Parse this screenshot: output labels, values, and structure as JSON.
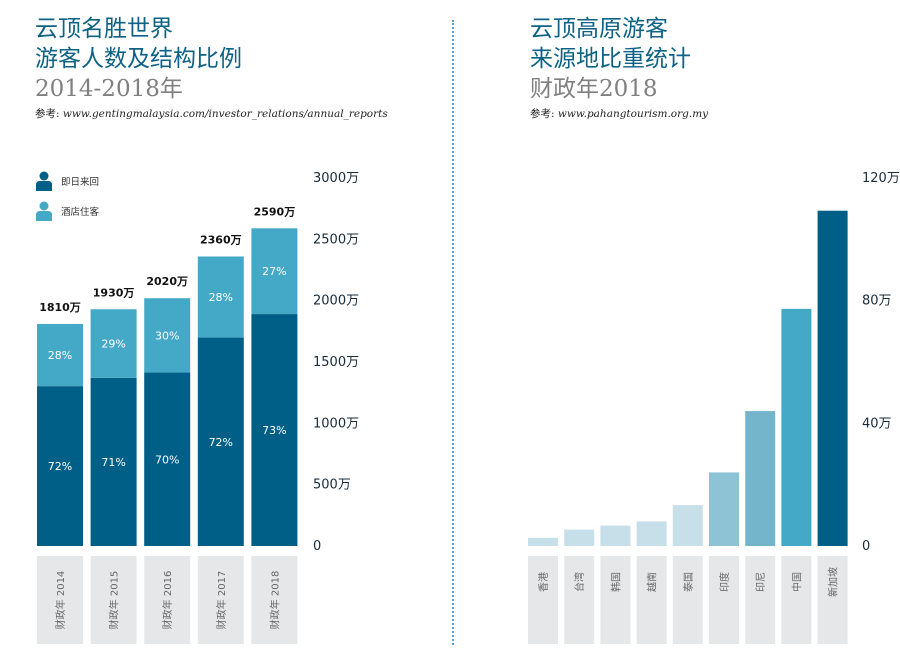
{
  "left": {
    "title_line1": "云顶名胜世界",
    "title_line2": "游客人数及结构比例",
    "subtitle": "2014-2018年",
    "source_label": "参考:",
    "source_url": "www.gentingmalaysia.com/investor_relations/annual_reports",
    "legend": [
      {
        "label": "即日来回",
        "icon": "person-icon",
        "color": "#005f87"
      },
      {
        "label": "酒店住客",
        "icon": "person-icon",
        "color": "#44a9c6"
      }
    ]
  },
  "right": {
    "title_line1": "云顶高原游客",
    "title_line2": "来源地比重统计",
    "subtitle": "财政年2018",
    "source_label": "参考:",
    "source_url": "www.pahangtourism.org.my"
  },
  "chart_data": [
    {
      "type": "bar",
      "stacked": true,
      "categories": [
        "财政年 2014",
        "财政年 2015",
        "财政年 2016",
        "财政年 2017",
        "财政年 2018"
      ],
      "totals": [
        1810,
        1930,
        2020,
        2360,
        2590
      ],
      "total_labels": [
        "1810万",
        "1930万",
        "2020万",
        "2360万",
        "2590万"
      ],
      "series": [
        {
          "name": "即日来回",
          "color": "#005f87",
          "percent_labels": [
            "72%",
            "71%",
            "70%",
            "72%",
            "73%"
          ],
          "percents": [
            72,
            71,
            70,
            72,
            73
          ]
        },
        {
          "name": "酒店住客",
          "color": "#44a9c6",
          "percent_labels": [
            "28%",
            "29%",
            "30%",
            "28%",
            "27%"
          ],
          "percents": [
            28,
            29,
            30,
            28,
            27
          ]
        }
      ],
      "ylim": [
        0,
        3000
      ],
      "yticks": [
        0,
        500,
        1000,
        1500,
        2000,
        2500,
        3000
      ],
      "ytick_labels": [
        "0",
        "500万",
        "1000万",
        "1500万",
        "2000万",
        "2500万",
        "3000万"
      ],
      "y_axis_position": "right",
      "grid": false
    },
    {
      "type": "bar",
      "categories": [
        "香港",
        "台湾",
        "韩国",
        "越南",
        "泰国",
        "印度",
        "印尼",
        "中国",
        "新加坡"
      ],
      "values": [
        4,
        8,
        10,
        12,
        20,
        36,
        66,
        116,
        164
      ],
      "colors": [
        "#c6dfe8",
        "#c6dfe8",
        "#c6dfe8",
        "#c6dfe8",
        "#c6dfe8",
        "#8ec3d6",
        "#74b5cc",
        "#44a9c6",
        "#005f87"
      ],
      "ylim": [
        0,
        180
      ],
      "yticks": [
        0,
        60,
        120,
        180
      ],
      "ytick_labels": [
        "0",
        "40万",
        "80万",
        "120万"
      ],
      "y_axis_position": "right",
      "grid": false
    }
  ]
}
